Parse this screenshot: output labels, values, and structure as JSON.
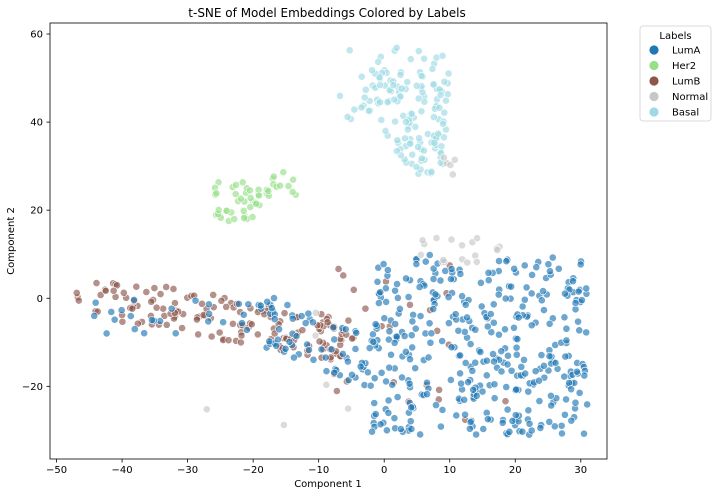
{
  "chart_data": {
    "type": "scatter",
    "title": "t-SNE of Model Embeddings Colored by Labels",
    "xlabel": "Component 1",
    "ylabel": "Component 2",
    "xlim": [
      -51,
      34
    ],
    "ylim": [
      -36.5,
      62.5
    ],
    "xticks": [
      -50,
      -40,
      -30,
      -20,
      -10,
      0,
      10,
      20,
      30
    ],
    "yticks": [
      -20,
      0,
      20,
      40,
      60
    ],
    "grid": false,
    "legend": {
      "title": "Labels",
      "placement": "upper-right-outside"
    },
    "series": [
      {
        "name": "LumA",
        "color": "#1f77b4"
      },
      {
        "name": "Her2",
        "color": "#98df8a"
      },
      {
        "name": "LumB",
        "color": "#8c564b"
      },
      {
        "name": "Normal",
        "color": "#c7c7c7"
      },
      {
        "name": "Basal",
        "color": "#9edae5"
      }
    ],
    "clusters": [
      {
        "series": "Basal",
        "x_range": [
          -7,
          12
        ],
        "y_range": [
          28,
          57
        ],
        "approx_points": 140,
        "note": "upper cluster"
      },
      {
        "series": "Her2",
        "x_range": [
          -26,
          -13
        ],
        "y_range": [
          17,
          30
        ],
        "approx_points": 55
      },
      {
        "series": "LumA",
        "x_range": [
          -15,
          31
        ],
        "y_range": [
          -32,
          10
        ],
        "approx_points": 420,
        "note": "lower-right band"
      },
      {
        "series": "LumB",
        "x_range": [
          -47,
          -5
        ],
        "y_range": [
          -14,
          6
        ],
        "approx_points": 160,
        "note": "left diagonal band"
      },
      {
        "series": "Normal",
        "x_range": [
          5,
          18
        ],
        "y_range": [
          8,
          14
        ],
        "approx_points": 20
      }
    ]
  }
}
